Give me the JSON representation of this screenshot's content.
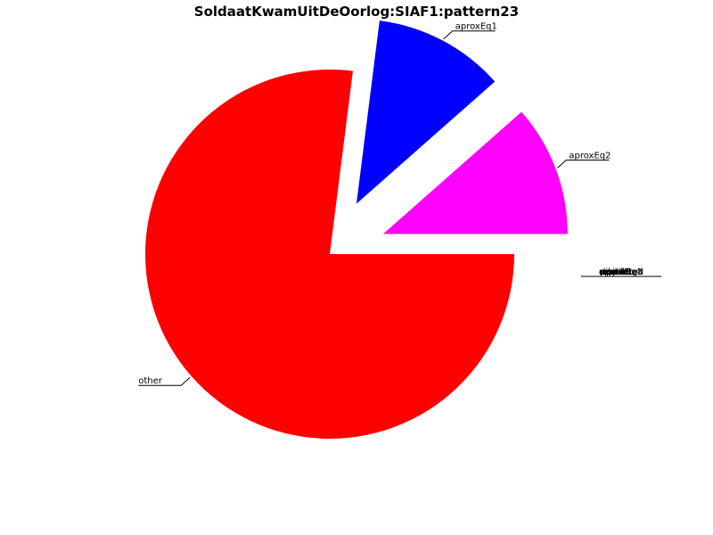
{
  "chart_data": {
    "type": "pie",
    "title": "SoldaatKwamUitDeOorlog:SIAF1:pattern23",
    "slices": [
      {
        "label": "other",
        "value": 77.0,
        "color": "#ff0000",
        "explode": false
      },
      {
        "label": "aproxEq1",
        "value": 11.5,
        "color": "#0000ff",
        "explode": true
      },
      {
        "label": "aproxEq2",
        "value": 11.5,
        "color": "#ff00ff",
        "explode": true
      }
    ],
    "overlapping_labels": [
      "exact",
      "equal",
      "unrelated",
      "related",
      "disjoint",
      "aproxEq3",
      "aproxEq4",
      "partial"
    ],
    "overlapping_label_values": [
      0,
      0,
      0,
      0,
      0,
      0,
      0,
      0
    ],
    "start_angle_deg": 0,
    "direction": "clockwise"
  }
}
